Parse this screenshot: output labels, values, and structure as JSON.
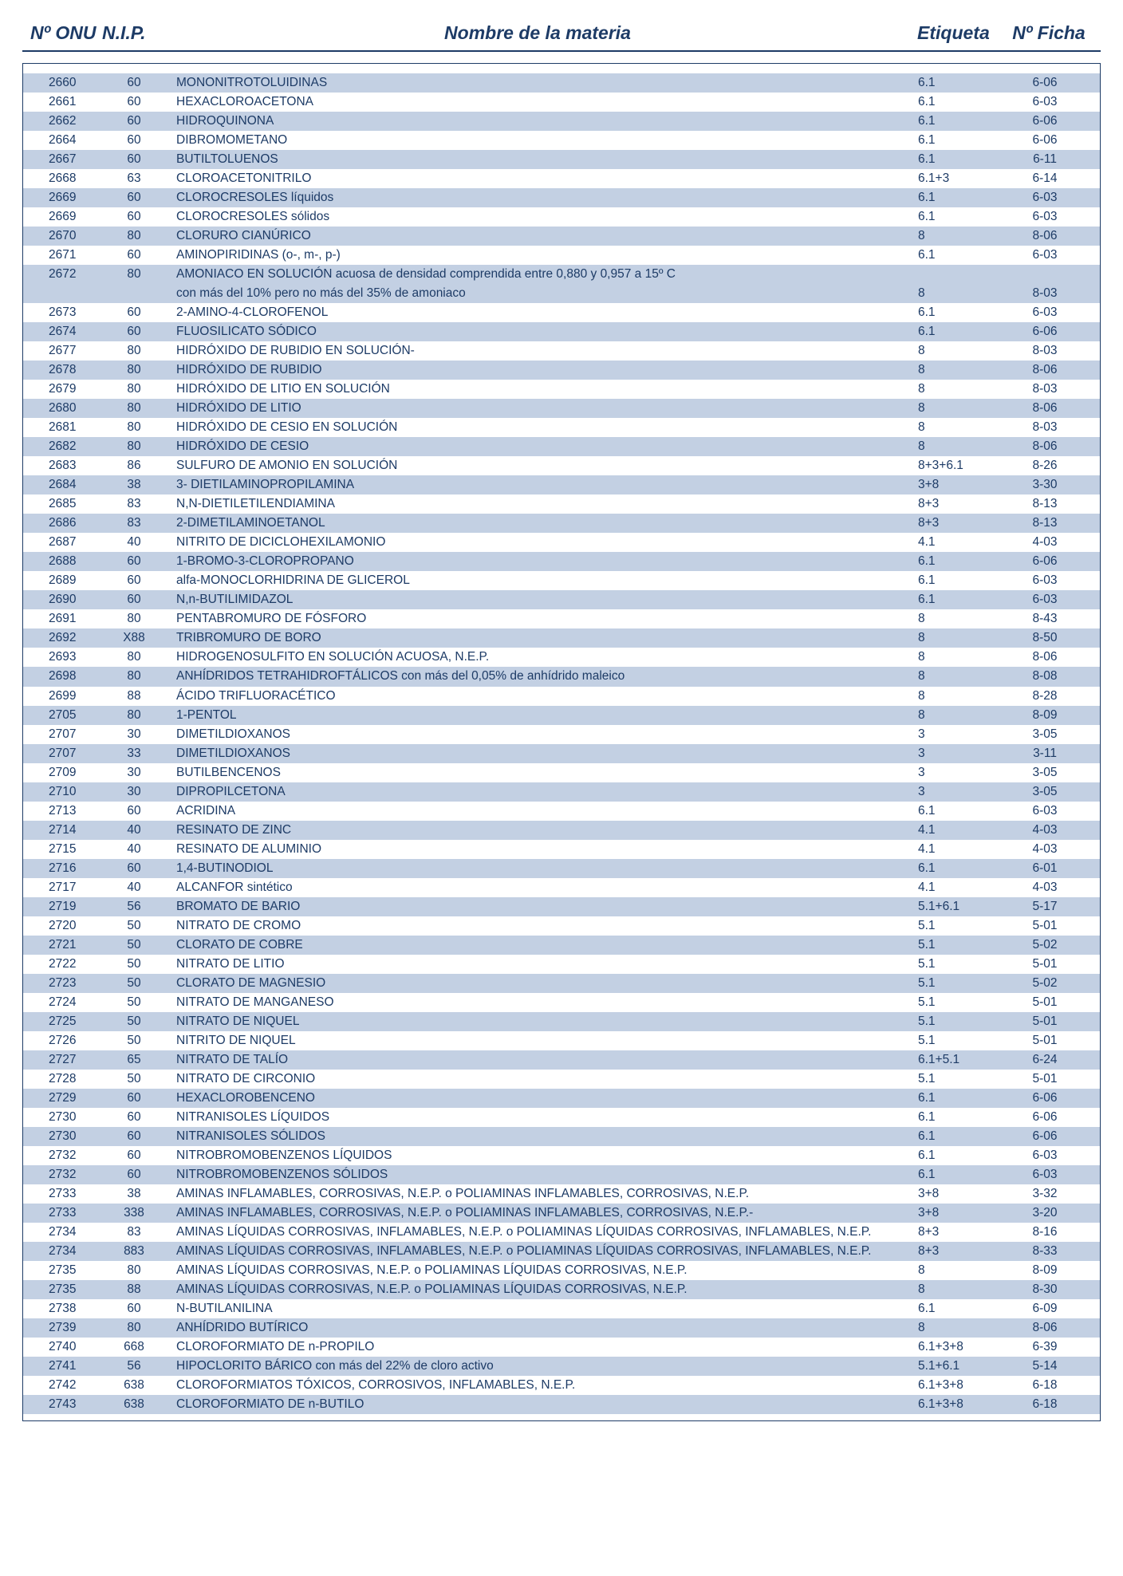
{
  "headers": {
    "onu": "Nº ONU",
    "nip": "N.I.P.",
    "name": "Nombre de la materia",
    "etq": "Etiqueta",
    "ficha": "Nº Ficha"
  },
  "style": {
    "text_color": "#1d3b66",
    "shade_color": "#c3d0e3",
    "background": "#ffffff",
    "border_color": "#1d3b66",
    "header_fontsize": 23,
    "body_fontsize": 15.5
  },
  "rows": [
    {
      "onu": "2660",
      "nip": "60",
      "name": "MONONITROTOLUIDINAS",
      "etq": "6.1",
      "ficha": "6-06",
      "shade": true
    },
    {
      "onu": "2661",
      "nip": "60",
      "name": "HEXACLOROACETONA",
      "etq": "6.1",
      "ficha": "6-03",
      "shade": false
    },
    {
      "onu": "2662",
      "nip": "60",
      "name": "HIDROQUINONA",
      "etq": "6.1",
      "ficha": "6-06",
      "shade": true
    },
    {
      "onu": "2664",
      "nip": "60",
      "name": "DIBROMOMETANO",
      "etq": "6.1",
      "ficha": "6-06",
      "shade": false
    },
    {
      "onu": "2667",
      "nip": "60",
      "name": "BUTILTOLUENOS",
      "etq": "6.1",
      "ficha": "6-11",
      "shade": true
    },
    {
      "onu": "2668",
      "nip": "63",
      "name": "CLOROACETONITRILO",
      "etq": "6.1+3",
      "ficha": "6-14",
      "shade": false
    },
    {
      "onu": "2669",
      "nip": "60",
      "name": "CLOROCRESOLES líquidos",
      "etq": "6.1",
      "ficha": "6-03",
      "shade": true
    },
    {
      "onu": "2669",
      "nip": "60",
      "name": "CLOROCRESOLES sólidos",
      "etq": "6.1",
      "ficha": "6-03",
      "shade": false
    },
    {
      "onu": "2670",
      "nip": "80",
      "name": "CLORURO CIANÚRICO",
      "etq": "8",
      "ficha": "8-06",
      "shade": true
    },
    {
      "onu": "2671",
      "nip": "60",
      "name": "AMINOPIRIDINAS (o-, m-, p-)",
      "etq": "6.1",
      "ficha": "6-03",
      "shade": false
    },
    {
      "onu": "2672",
      "nip": "80",
      "name": "AMONIACO EN SOLUCIÓN acuosa de densidad comprendida entre 0,880 y 0,957 a 15º C",
      "etq": "",
      "ficha": "",
      "shade": true
    },
    {
      "onu": "",
      "nip": "",
      "name": "con más del 10% pero no más del 35% de amoniaco",
      "etq": "8",
      "ficha": "8-03",
      "shade": true
    },
    {
      "onu": "2673",
      "nip": "60",
      "name": "2-AMINO-4-CLOROFENOL",
      "etq": "6.1",
      "ficha": "6-03",
      "shade": false
    },
    {
      "onu": "2674",
      "nip": "60",
      "name": "FLUOSILICATO SÓDICO",
      "etq": "6.1",
      "ficha": "6-06",
      "shade": true
    },
    {
      "onu": "2677",
      "nip": "80",
      "name": "HIDRÓXIDO DE RUBIDIO EN SOLUCIÓN-",
      "etq": "8",
      "ficha": "8-03",
      "shade": false
    },
    {
      "onu": "2678",
      "nip": "80",
      "name": "HIDRÓXIDO DE RUBIDIO",
      "etq": "8",
      "ficha": "8-06",
      "shade": true
    },
    {
      "onu": "2679",
      "nip": "80",
      "name": "HIDRÓXIDO DE LITIO EN SOLUCIÓN",
      "etq": "8",
      "ficha": "8-03",
      "shade": false
    },
    {
      "onu": "2680",
      "nip": "80",
      "name": "HIDRÓXIDO DE LITIO",
      "etq": "8",
      "ficha": "8-06",
      "shade": true
    },
    {
      "onu": "2681",
      "nip": "80",
      "name": "HIDRÓXIDO DE CESIO EN SOLUCIÓN",
      "etq": "8",
      "ficha": "8-03",
      "shade": false
    },
    {
      "onu": "2682",
      "nip": "80",
      "name": "HIDRÓXIDO DE CESIO",
      "etq": "8",
      "ficha": "8-06",
      "shade": true
    },
    {
      "onu": "2683",
      "nip": "86",
      "name": "SULFURO DE AMONIO EN SOLUCIÓN",
      "etq": "8+3+6.1",
      "ficha": "8-26",
      "shade": false
    },
    {
      "onu": "2684",
      "nip": "38",
      "name": "3- DIETILAMINOPROPILAMINA",
      "etq": "3+8",
      "ficha": "3-30",
      "shade": true
    },
    {
      "onu": "2685",
      "nip": "83",
      "name": "N,N-DIETILETILENDIAMINA",
      "etq": "8+3",
      "ficha": "8-13",
      "shade": false
    },
    {
      "onu": "2686",
      "nip": "83",
      "name": "2-DIMETILAMINOETANOL",
      "etq": "8+3",
      "ficha": "8-13",
      "shade": true
    },
    {
      "onu": "2687",
      "nip": "40",
      "name": "NITRITO DE DICICLOHEXILAMONIO",
      "etq": "4.1",
      "ficha": "4-03",
      "shade": false
    },
    {
      "onu": "2688",
      "nip": "60",
      "name": "1-BROMO-3-CLOROPROPANO",
      "etq": "6.1",
      "ficha": "6-06",
      "shade": true
    },
    {
      "onu": "2689",
      "nip": "60",
      "name": "alfa-MONOCLORHIDRINA DE GLICEROL",
      "etq": "6.1",
      "ficha": "6-03",
      "shade": false
    },
    {
      "onu": "2690",
      "nip": "60",
      "name": "N,n-BUTILIMIDAZOL",
      "etq": "6.1",
      "ficha": "6-03",
      "shade": true
    },
    {
      "onu": "2691",
      "nip": "80",
      "name": "PENTABROMURO DE FÓSFORO",
      "etq": "8",
      "ficha": "8-43",
      "shade": false
    },
    {
      "onu": "2692",
      "nip": "X88",
      "name": "TRIBROMURO DE BORO",
      "etq": "8",
      "ficha": "8-50",
      "shade": true
    },
    {
      "onu": "2693",
      "nip": "80",
      "name": "HIDROGENOSULFITO EN SOLUCIÓN ACUOSA, N.E.P.",
      "etq": "8",
      "ficha": "8-06",
      "shade": false
    },
    {
      "onu": "2698",
      "nip": "80",
      "name": "ANHÍDRIDOS TETRAHIDROFTÁLICOS con más del 0,05% de anhídrido maleico",
      "etq": "8",
      "ficha": "8-08",
      "shade": true
    },
    {
      "onu": "2699",
      "nip": "88",
      "name": "ÁCIDO TRIFLUORACÉTICO",
      "etq": "8",
      "ficha": "8-28",
      "shade": false
    },
    {
      "onu": "2705",
      "nip": "80",
      "name": "1-PENTOL",
      "etq": "8",
      "ficha": "8-09",
      "shade": true
    },
    {
      "onu": "2707",
      "nip": "30",
      "name": "DIMETILDIOXANOS",
      "etq": "3",
      "ficha": "3-05",
      "shade": false
    },
    {
      "onu": "2707",
      "nip": "33",
      "name": "DIMETILDIOXANOS",
      "etq": "3",
      "ficha": "3-11",
      "shade": true
    },
    {
      "onu": "2709",
      "nip": "30",
      "name": "BUTILBENCENOS",
      "etq": "3",
      "ficha": "3-05",
      "shade": false
    },
    {
      "onu": "2710",
      "nip": "30",
      "name": "DIPROPILCETONA",
      "etq": "3",
      "ficha": "3-05",
      "shade": true
    },
    {
      "onu": "2713",
      "nip": "60",
      "name": "ACRIDINA",
      "etq": "6.1",
      "ficha": "6-03",
      "shade": false
    },
    {
      "onu": "2714",
      "nip": "40",
      "name": "RESINATO DE ZINC",
      "etq": "4.1",
      "ficha": "4-03",
      "shade": true
    },
    {
      "onu": "2715",
      "nip": "40",
      "name": "RESINATO DE ALUMINIO",
      "etq": "4.1",
      "ficha": "4-03",
      "shade": false
    },
    {
      "onu": "2716",
      "nip": "60",
      "name": "1,4-BUTINODIOL",
      "etq": "6.1",
      "ficha": "6-01",
      "shade": true
    },
    {
      "onu": "2717",
      "nip": "40",
      "name": "ALCANFOR sintético",
      "etq": "4.1",
      "ficha": "4-03",
      "shade": false
    },
    {
      "onu": "2719",
      "nip": "56",
      "name": "BROMATO DE BARIO",
      "etq": "5.1+6.1",
      "ficha": "5-17",
      "shade": true
    },
    {
      "onu": "2720",
      "nip": "50",
      "name": "NITRATO DE CROMO",
      "etq": "5.1",
      "ficha": "5-01",
      "shade": false
    },
    {
      "onu": "2721",
      "nip": "50",
      "name": "CLORATO DE COBRE",
      "etq": "5.1",
      "ficha": "5-02",
      "shade": true
    },
    {
      "onu": "2722",
      "nip": "50",
      "name": "NITRATO DE LITIO",
      "etq": "5.1",
      "ficha": "5-01",
      "shade": false
    },
    {
      "onu": "2723",
      "nip": "50",
      "name": "CLORATO DE MAGNESIO",
      "etq": "5.1",
      "ficha": "5-02",
      "shade": true
    },
    {
      "onu": "2724",
      "nip": "50",
      "name": "NITRATO DE MANGANESO",
      "etq": "5.1",
      "ficha": "5-01",
      "shade": false
    },
    {
      "onu": "2725",
      "nip": "50",
      "name": "NITRATO DE NIQUEL",
      "etq": "5.1",
      "ficha": "5-01",
      "shade": true
    },
    {
      "onu": "2726",
      "nip": "50",
      "name": "NITRITO DE NIQUEL",
      "etq": "5.1",
      "ficha": "5-01",
      "shade": false
    },
    {
      "onu": "2727",
      "nip": "65",
      "name": "NITRATO DE TALÍO",
      "etq": "6.1+5.1",
      "ficha": "6-24",
      "shade": true
    },
    {
      "onu": "2728",
      "nip": "50",
      "name": "NITRATO DE CIRCONIO",
      "etq": "5.1",
      "ficha": "5-01",
      "shade": false
    },
    {
      "onu": "2729",
      "nip": "60",
      "name": "HEXACLOROBENCENO",
      "etq": "6.1",
      "ficha": "6-06",
      "shade": true
    },
    {
      "onu": "2730",
      "nip": "60",
      "name": "NITRANISOLES LÍQUIDOS",
      "etq": "6.1",
      "ficha": "6-06",
      "shade": false
    },
    {
      "onu": "2730",
      "nip": "60",
      "name": "NITRANISOLES SÓLIDOS",
      "etq": "6.1",
      "ficha": "6-06",
      "shade": true
    },
    {
      "onu": "2732",
      "nip": "60",
      "name": "NITROBROMOBENZENOS LÍQUIDOS",
      "etq": "6.1",
      "ficha": "6-03",
      "shade": false
    },
    {
      "onu": "2732",
      "nip": "60",
      "name": "NITROBROMOBENZENOS SÓLIDOS",
      "etq": "6.1",
      "ficha": "6-03",
      "shade": true
    },
    {
      "onu": "2733",
      "nip": "38",
      "name": "AMINAS INFLAMABLES, CORROSIVAS, N.E.P. o POLIAMINAS INFLAMABLES, CORROSIVAS, N.E.P.",
      "etq": "3+8",
      "ficha": "3-32",
      "shade": false
    },
    {
      "onu": "2733",
      "nip": "338",
      "name": "AMINAS INFLAMABLES, CORROSIVAS, N.E.P. o POLIAMINAS INFLAMABLES, CORROSIVAS, N.E.P.-",
      "etq": "3+8",
      "ficha": "3-20",
      "shade": true
    },
    {
      "onu": "2734",
      "nip": "83",
      "name": "AMINAS LÍQUIDAS CORROSIVAS, INFLAMABLES, N.E.P. o POLIAMINAS LÍQUIDAS CORROSIVAS, INFLAMABLES, N.E.P.",
      "etq": "8+3",
      "ficha": "8-16",
      "shade": false
    },
    {
      "onu": "2734",
      "nip": "883",
      "name": "AMINAS LÍQUIDAS CORROSIVAS, INFLAMABLES, N.E.P. o POLIAMINAS LÍQUIDAS CORROSIVAS, INFLAMABLES, N.E.P.",
      "etq": "8+3",
      "ficha": "8-33",
      "shade": true
    },
    {
      "onu": "2735",
      "nip": "80",
      "name": "AMINAS LÍQUIDAS CORROSIVAS, N.E.P. o POLIAMINAS LÍQUIDAS CORROSIVAS, N.E.P.",
      "etq": "8",
      "ficha": "8-09",
      "shade": false
    },
    {
      "onu": "2735",
      "nip": "88",
      "name": "AMINAS LÍQUIDAS CORROSIVAS, N.E.P. o POLIAMINAS LÍQUIDAS CORROSIVAS, N.E.P.",
      "etq": "8",
      "ficha": "8-30",
      "shade": true
    },
    {
      "onu": "2738",
      "nip": "60",
      "name": "N-BUTILANILINA",
      "etq": "6.1",
      "ficha": "6-09",
      "shade": false
    },
    {
      "onu": "2739",
      "nip": "80",
      "name": "ANHÍDRIDO BUTÍRICO",
      "etq": "8",
      "ficha": "8-06",
      "shade": true
    },
    {
      "onu": "2740",
      "nip": "668",
      "name": "CLOROFORMIATO DE n-PROPILO",
      "etq": "6.1+3+8",
      "ficha": "6-39",
      "shade": false
    },
    {
      "onu": "2741",
      "nip": "56",
      "name": "HIPOCLORITO BÁRICO con más del 22% de cloro activo",
      "etq": "5.1+6.1",
      "ficha": "5-14",
      "shade": true
    },
    {
      "onu": "2742",
      "nip": "638",
      "name": "CLOROFORMIATOS TÓXICOS, CORROSIVOS, INFLAMABLES, N.E.P.",
      "etq": "6.1+3+8",
      "ficha": "6-18",
      "shade": false
    },
    {
      "onu": "2743",
      "nip": "638",
      "name": "CLOROFORMIATO DE n-BUTILO",
      "etq": "6.1+3+8",
      "ficha": "6-18",
      "shade": true
    }
  ]
}
